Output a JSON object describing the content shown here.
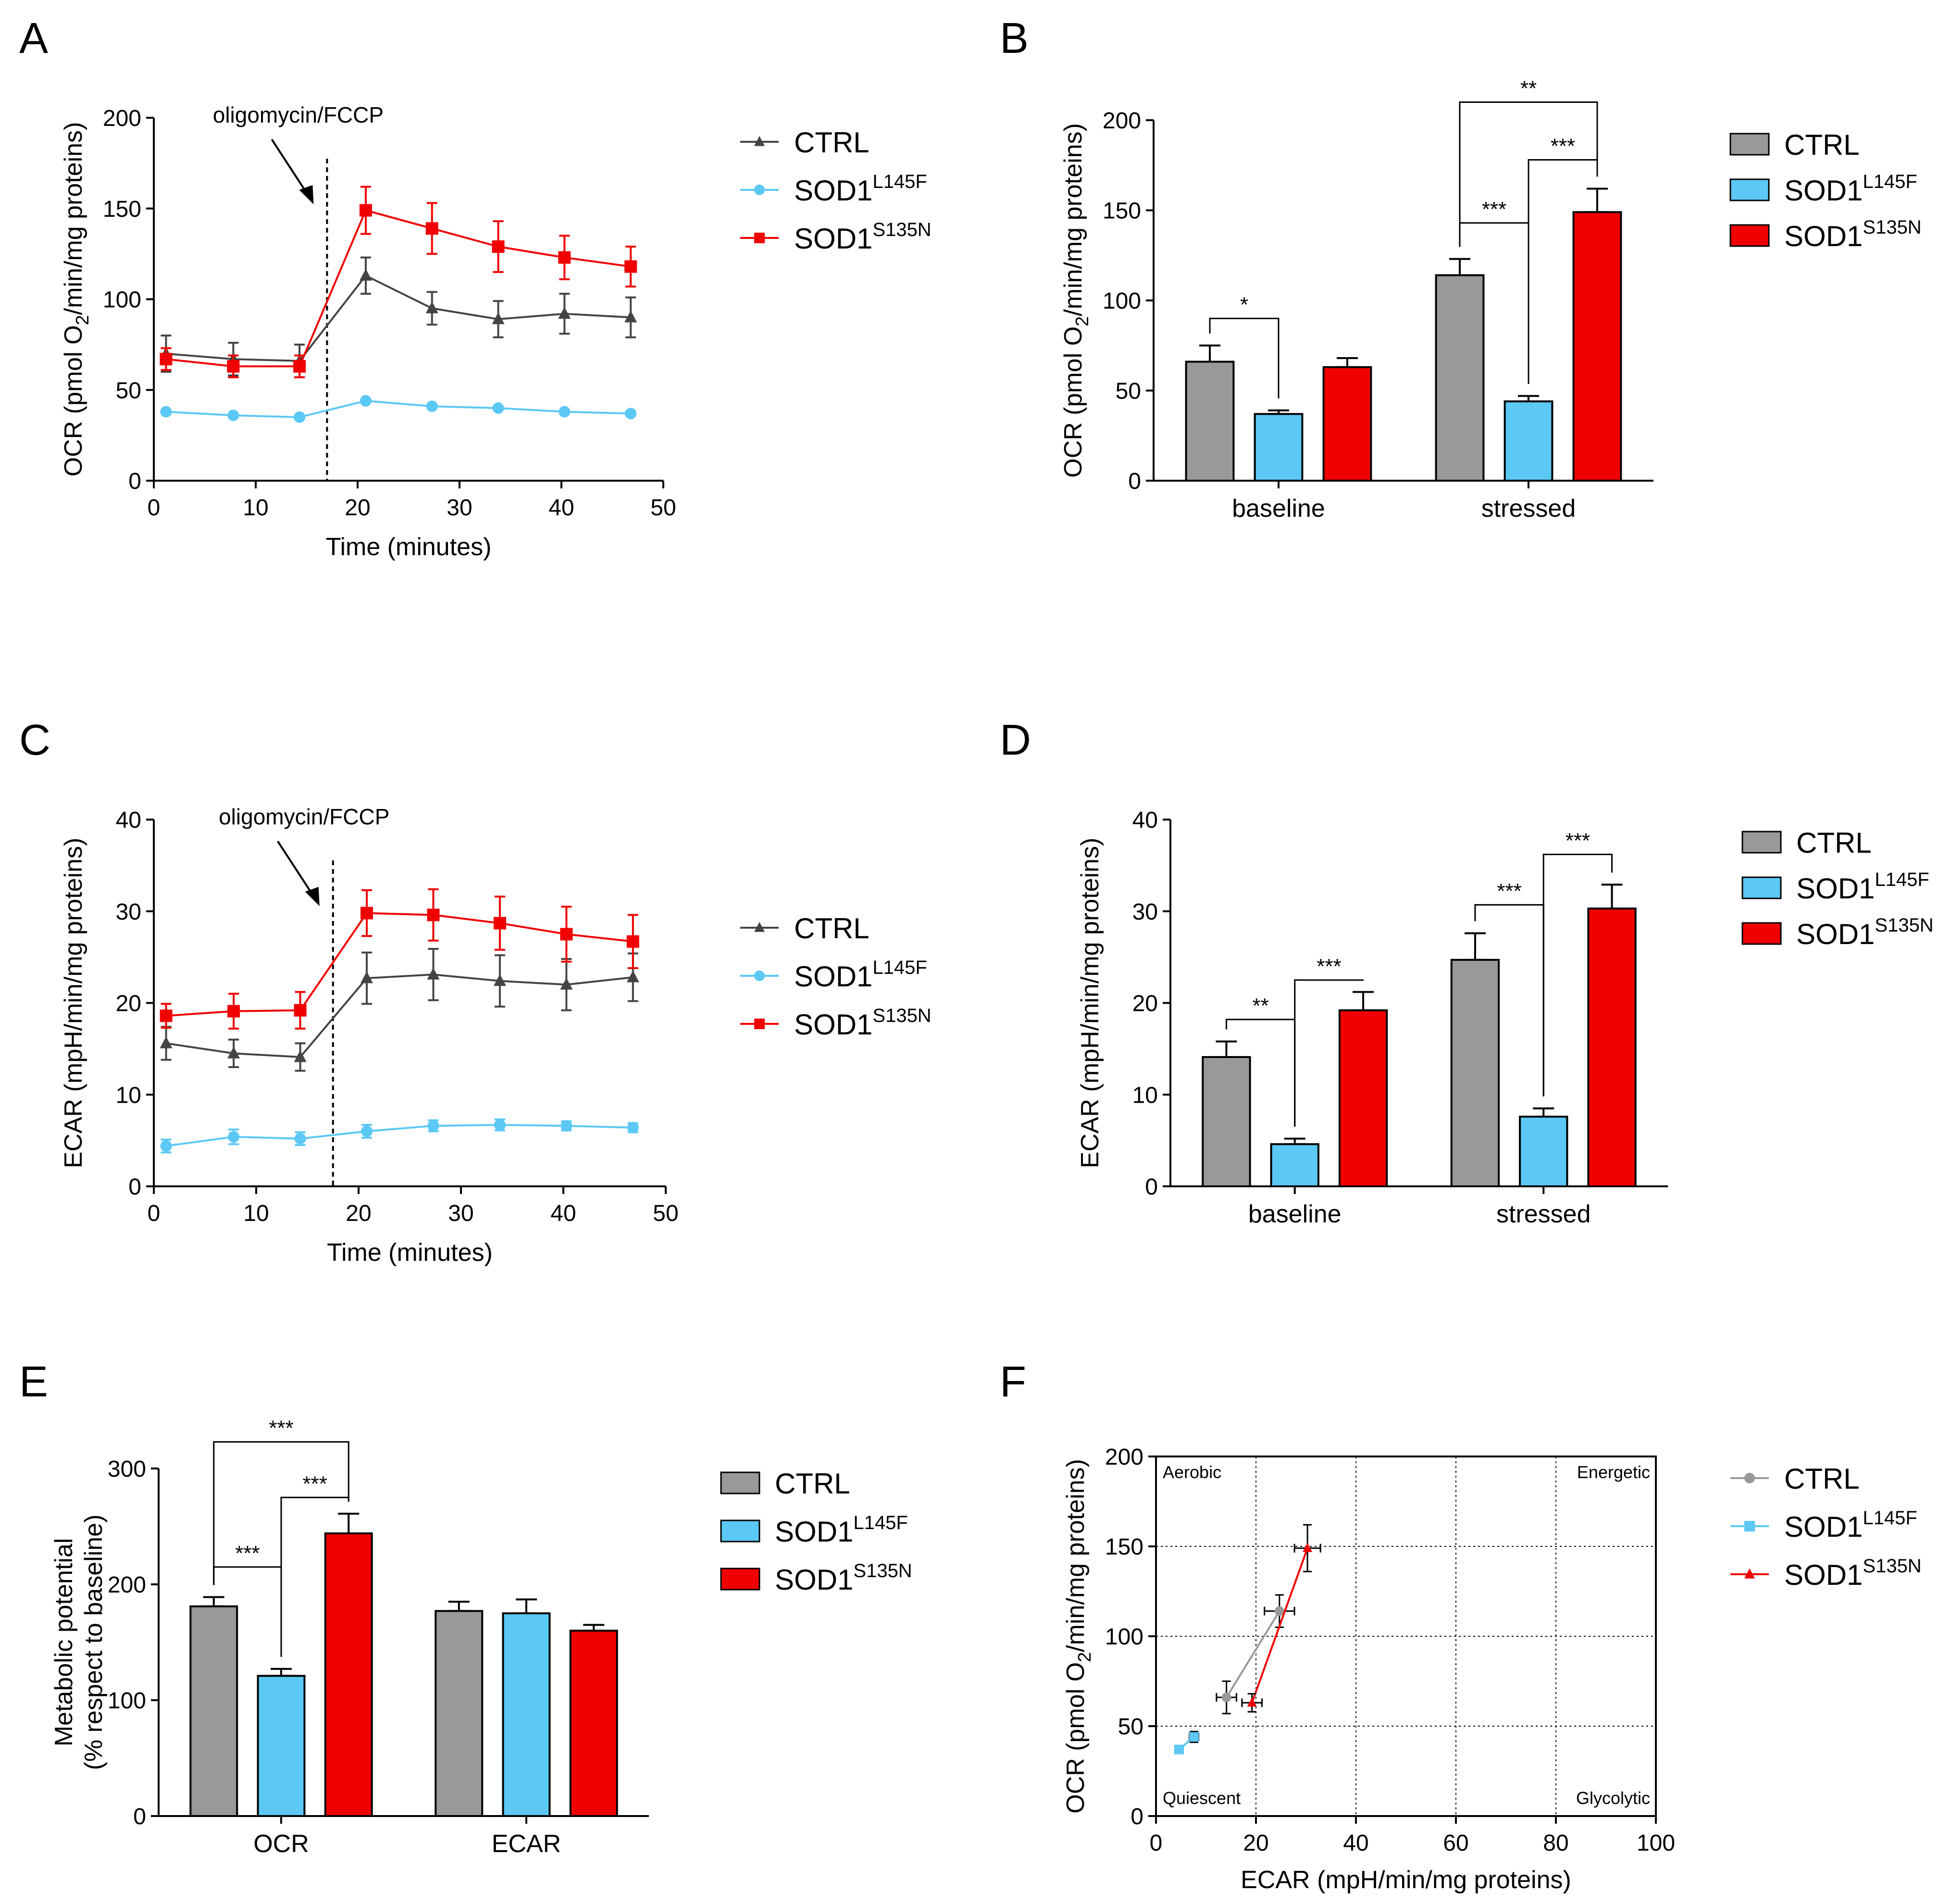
{
  "colors": {
    "ctrl": "#999999",
    "ctrl_line": "#444444",
    "l145f": "#5bc8f5",
    "s135n": "#f00000",
    "axis": "#000000"
  },
  "legend": {
    "ctrl": "CTRL",
    "l145f_base": "SOD1",
    "l145f_sup": "L145F",
    "s135n_base": "SOD1",
    "s135n_sup": "S135N"
  },
  "chart_data": [
    {
      "id": "A",
      "type": "line",
      "label": "A",
      "xlabel": "Time (minutes)",
      "ylabel_pre": "OCR (pmol O",
      "ylabel_sub": "2",
      "ylabel_post": "/min/mg proteins)",
      "xlim": [
        0,
        50
      ],
      "ylim": [
        0,
        200
      ],
      "xticks": [
        "0",
        "10",
        "20",
        "30",
        "40",
        "50"
      ],
      "yticks": [
        "0",
        "50",
        "100",
        "150",
        "200"
      ],
      "annotation": "oligomycin/FCCP",
      "injection_x": 17,
      "x": [
        1.2,
        7.8,
        14.3,
        20.8,
        27.3,
        33.8,
        40.3,
        46.8
      ],
      "series": [
        {
          "key": "ctrl",
          "name": "CTRL",
          "marker": "triangle",
          "values": [
            70,
            67,
            66,
            113,
            95,
            89,
            92,
            90
          ],
          "err": [
            10,
            9,
            9,
            10,
            9,
            10,
            11,
            11
          ]
        },
        {
          "key": "l145f",
          "name": "SOD1 L145F",
          "marker": "circle",
          "values": [
            38,
            36,
            35,
            44,
            41,
            40,
            38,
            37
          ],
          "err": [
            1,
            1,
            1,
            1,
            1,
            1,
            1,
            1
          ]
        },
        {
          "key": "s135n",
          "name": "SOD1 S135N",
          "marker": "square",
          "values": [
            67,
            63,
            63,
            149,
            139,
            129,
            123,
            118
          ],
          "err": [
            6,
            6,
            6,
            13,
            14,
            14,
            12,
            11
          ]
        }
      ]
    },
    {
      "id": "B",
      "type": "bar",
      "label": "B",
      "xlabel": "",
      "ylabel_pre": "OCR (pmol O",
      "ylabel_sub": "2",
      "ylabel_post": "/min/mg proteins)",
      "ylim": [
        0,
        200
      ],
      "yticks": [
        "0",
        "50",
        "100",
        "150",
        "200"
      ],
      "categories": [
        "baseline",
        "stressed"
      ],
      "series": [
        {
          "key": "ctrl",
          "name": "CTRL",
          "values": [
            66,
            114
          ],
          "err": [
            9,
            9
          ]
        },
        {
          "key": "l145f",
          "name": "SOD1 L145F",
          "values": [
            37,
            44
          ],
          "err": [
            2,
            3
          ]
        },
        {
          "key": "s135n",
          "name": "SOD1 S135N",
          "values": [
            63,
            149
          ],
          "err": [
            5,
            13
          ]
        }
      ],
      "significance": [
        {
          "cat": 0,
          "a": 0,
          "b": 1,
          "label": "*",
          "y": 90
        },
        {
          "cat": 1,
          "a": 0,
          "b": 1,
          "label": "***",
          "y": 143
        },
        {
          "cat": 1,
          "a": 1,
          "b": 2,
          "label": "***",
          "y": 178
        },
        {
          "cat": 1,
          "a": 0,
          "b": 2,
          "label": "**",
          "y": 210
        }
      ]
    },
    {
      "id": "C",
      "type": "line",
      "label": "C",
      "xlabel": "Time (minutes)",
      "ylabel_pre": "ECAR (mpH/min/mg proteins)",
      "ylabel_sub": "",
      "ylabel_post": "",
      "xlim": [
        0,
        50
      ],
      "ylim": [
        0,
        40
      ],
      "xticks": [
        "0",
        "10",
        "20",
        "30",
        "40",
        "50"
      ],
      "yticks": [
        "0",
        "10",
        "20",
        "30",
        "40"
      ],
      "annotation": "oligomycin/FCCP",
      "injection_x": 17.5,
      "x": [
        1.2,
        7.8,
        14.3,
        20.8,
        27.3,
        33.8,
        40.3,
        46.8
      ],
      "series": [
        {
          "key": "ctrl",
          "name": "CTRL",
          "marker": "triangle",
          "values": [
            15.6,
            14.5,
            14.1,
            22.7,
            23.1,
            22.4,
            22.0,
            22.8
          ],
          "err": [
            1.8,
            1.5,
            1.5,
            2.8,
            2.8,
            2.8,
            2.8,
            2.6
          ]
        },
        {
          "key": "l145f",
          "name": "SOD1 L145F",
          "marker": "circle",
          "values": [
            4.4,
            5.4,
            5.2,
            6.0,
            6.6,
            6.7,
            6.6,
            6.4
          ],
          "err": [
            0.7,
            0.8,
            0.7,
            0.7,
            0.6,
            0.6,
            0.5,
            0.5
          ]
        },
        {
          "key": "s135n",
          "name": "SOD1 S135N",
          "marker": "square",
          "values": [
            18.6,
            19.1,
            19.2,
            29.8,
            29.6,
            28.7,
            27.5,
            26.7
          ],
          "err": [
            1.3,
            1.9,
            2.0,
            2.5,
            2.8,
            2.9,
            3.0,
            2.9
          ]
        }
      ]
    },
    {
      "id": "D",
      "type": "bar",
      "label": "D",
      "xlabel": "",
      "ylabel_pre": "ECAR (mpH/min/mg proteins)",
      "ylabel_sub": "",
      "ylabel_post": "",
      "ylim": [
        0,
        40
      ],
      "yticks": [
        "0",
        "10",
        "20",
        "30",
        "40"
      ],
      "categories": [
        "baseline",
        "stressed"
      ],
      "series": [
        {
          "key": "ctrl",
          "name": "CTRL",
          "values": [
            14.1,
            24.7
          ],
          "err": [
            1.7,
            2.9
          ]
        },
        {
          "key": "l145f",
          "name": "SOD1 L145F",
          "values": [
            4.6,
            7.6
          ],
          "err": [
            0.6,
            0.9
          ]
        },
        {
          "key": "s135n",
          "name": "SOD1 S135N",
          "values": [
            19.2,
            30.3
          ],
          "err": [
            2.0,
            2.6
          ]
        }
      ],
      "significance": [
        {
          "cat": 0,
          "a": 0,
          "b": 1,
          "label": "**",
          "y": 18.2
        },
        {
          "cat": 0,
          "a": 1,
          "b": 2,
          "label": "***",
          "y": 22.5
        },
        {
          "cat": 1,
          "a": 0,
          "b": 1,
          "label": "***",
          "y": 30.7
        },
        {
          "cat": 1,
          "a": 1,
          "b": 2,
          "label": "***",
          "y": 36.2
        }
      ]
    },
    {
      "id": "E",
      "type": "bar",
      "label": "E",
      "xlabel": "",
      "ylabel_pre": "Metabolic potential",
      "ylabel_line2": "(% respect to baseline)",
      "ylabel_sub": "",
      "ylabel_post": "",
      "ylim": [
        0,
        300
      ],
      "yticks": [
        "0",
        "100",
        "200",
        "300"
      ],
      "categories": [
        "OCR",
        "ECAR"
      ],
      "series": [
        {
          "key": "ctrl",
          "name": "CTRL",
          "values": [
            181,
            177
          ],
          "err": [
            8,
            8
          ]
        },
        {
          "key": "l145f",
          "name": "SOD1 L145F",
          "values": [
            121,
            175
          ],
          "err": [
            6,
            12
          ]
        },
        {
          "key": "s135n",
          "name": "SOD1 S135N",
          "values": [
            244,
            160
          ],
          "err": [
            17,
            5
          ]
        }
      ],
      "significance": [
        {
          "cat": 0,
          "a": 0,
          "b": 1,
          "label": "***",
          "y": 215
        },
        {
          "cat": 0,
          "a": 1,
          "b": 2,
          "label": "***",
          "y": 275
        },
        {
          "cat": 0,
          "a": 0,
          "b": 2,
          "label": "***",
          "y": 323
        }
      ]
    },
    {
      "id": "F",
      "type": "scatter",
      "label": "F",
      "xlabel": "ECAR (mpH/min/mg proteins)",
      "ylabel_pre": "OCR (pmol O",
      "ylabel_sub": "2",
      "ylabel_post": "/min/mg proteins)",
      "xlim": [
        0,
        100
      ],
      "ylim": [
        0,
        200
      ],
      "xticks": [
        "0",
        "20",
        "40",
        "60",
        "80",
        "100"
      ],
      "yticks": [
        "0",
        "50",
        "100",
        "150",
        "200"
      ],
      "quadrants": {
        "top_left": "Aerobic",
        "top_right": "Energetic",
        "bottom_left": "Quiescent",
        "bottom_right": "Glycolytic"
      },
      "series": [
        {
          "key": "ctrl",
          "name": "CTRL",
          "marker": "circle",
          "points": [
            {
              "x": 14.1,
              "y": 66,
              "ex": 2.0,
              "ey": 9
            },
            {
              "x": 24.7,
              "y": 114,
              "ex": 3.0,
              "ey": 9
            }
          ]
        },
        {
          "key": "l145f",
          "name": "SOD1 L145F",
          "marker": "square",
          "points": [
            {
              "x": 4.6,
              "y": 37,
              "ex": 0.8,
              "ey": 2
            },
            {
              "x": 7.6,
              "y": 44,
              "ex": 0.9,
              "ey": 3
            }
          ]
        },
        {
          "key": "s135n",
          "name": "SOD1 S135N",
          "marker": "triangle",
          "points": [
            {
              "x": 19.2,
              "y": 63,
              "ex": 2.0,
              "ey": 5
            },
            {
              "x": 30.3,
              "y": 149,
              "ex": 2.6,
              "ey": 13
            }
          ]
        }
      ]
    }
  ]
}
